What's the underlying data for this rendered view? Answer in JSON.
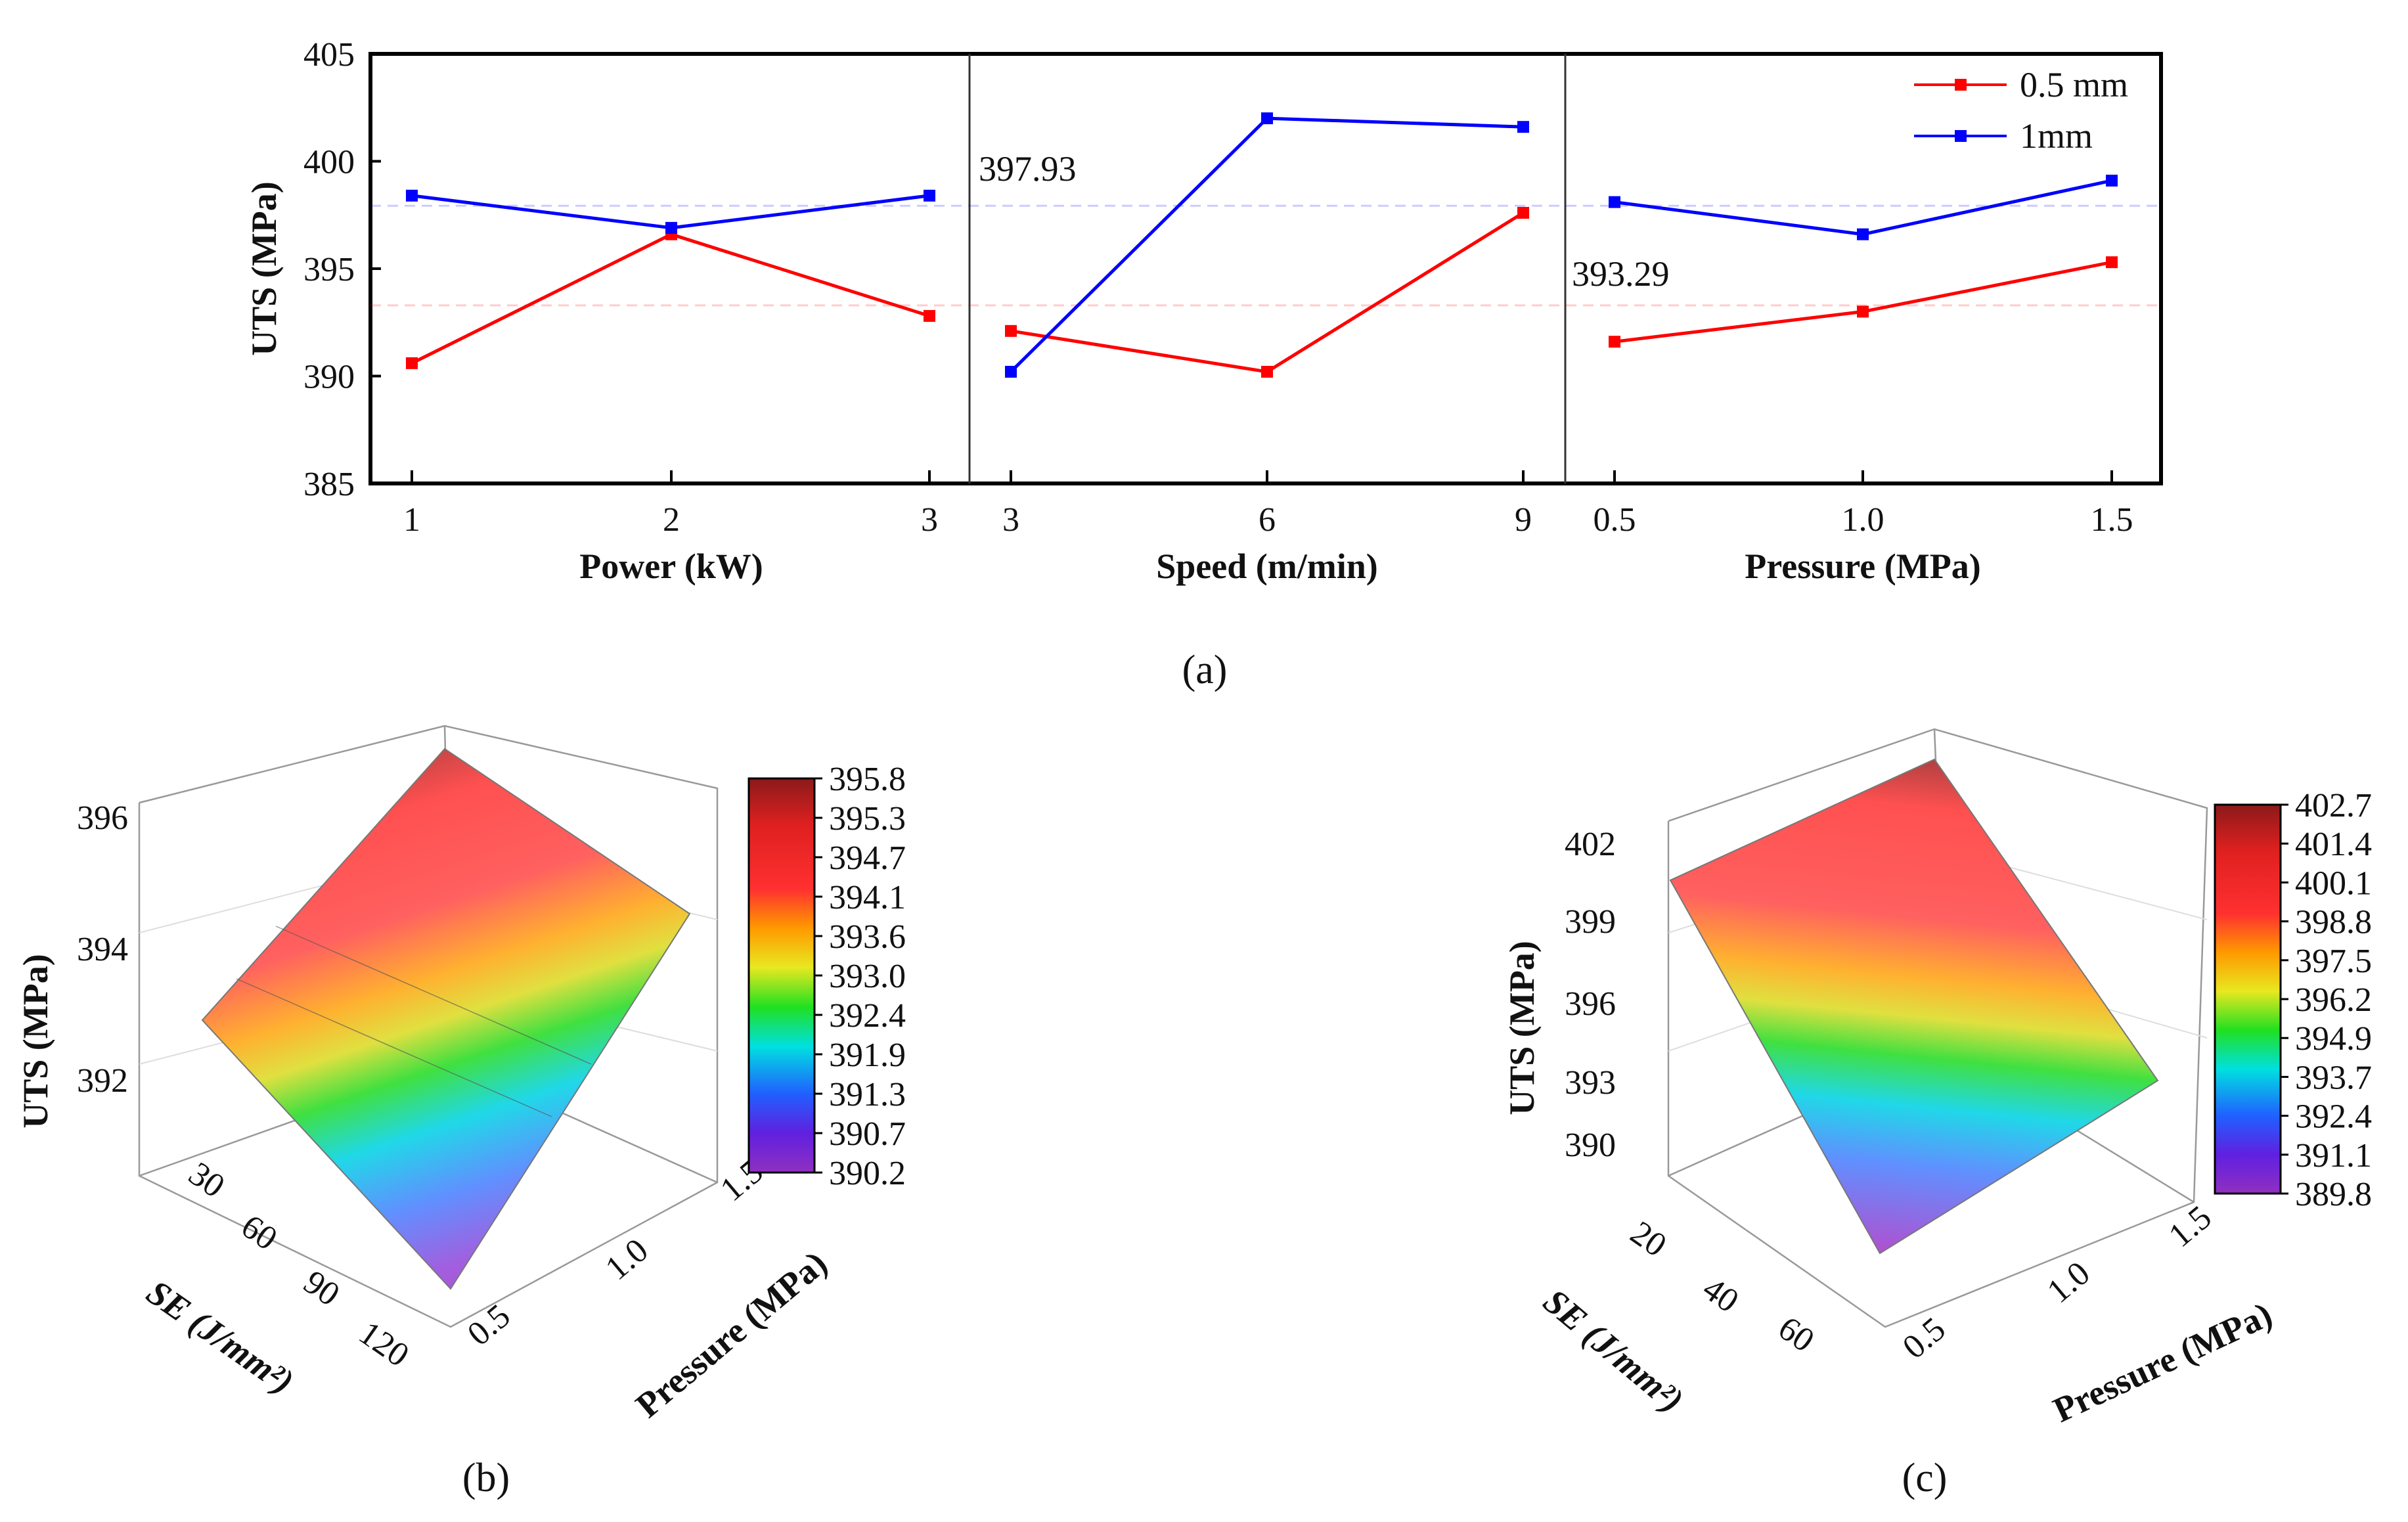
{
  "chart_data": [
    {
      "type": "line",
      "panel": "(a)",
      "ylabel": "UTS (MPa)",
      "ylim": [
        385,
        405
      ],
      "yticks": [
        "385",
        "390",
        "395",
        "400",
        "405"
      ],
      "groups": [
        {
          "xlabel": "Power (kW)",
          "x": [
            "1",
            "2",
            "3"
          ]
        },
        {
          "xlabel": "Speed (m/min)",
          "x": [
            "3",
            "6",
            "9"
          ]
        },
        {
          "xlabel": "Pressure (MPa)",
          "x": [
            "0.5",
            "1.0",
            "1.5"
          ]
        }
      ],
      "series": [
        {
          "name": "0.5 mm",
          "color": "#ff0000",
          "values": [
            [
              390.6,
              396.6,
              392.8
            ],
            [
              392.1,
              390.2,
              397.6
            ],
            [
              391.6,
              393.0,
              395.3
            ]
          ],
          "mean": 393.29,
          "mean_label": "393.29"
        },
        {
          "name": "1mm",
          "color": "#0000ff",
          "values": [
            [
              398.4,
              396.9,
              398.4
            ],
            [
              390.2,
              402.0,
              401.6
            ],
            [
              398.1,
              396.6,
              399.1
            ]
          ],
          "mean": 397.93,
          "mean_label": "397.93"
        }
      ],
      "legend": "top-right"
    },
    {
      "type": "surface",
      "panel": "(b)",
      "zlabel": "UTS (MPa)",
      "xlabel": "SE (J/mm²)",
      "ylabel": "Pressure (MPa)",
      "zticks": [
        "396",
        "394",
        "392"
      ],
      "xticks": [
        "30",
        "60",
        "90",
        "120"
      ],
      "yticks": [
        "0.5",
        "1.0",
        "1.5"
      ],
      "colorbar": [
        "395.8",
        "395.3",
        "394.7",
        "394.1",
        "393.6",
        "393.0",
        "392.4",
        "391.9",
        "391.3",
        "390.7",
        "390.2"
      ]
    },
    {
      "type": "surface",
      "panel": "(c)",
      "zlabel": "UTS (MPa)",
      "xlabel": "SE (J/mm²)",
      "ylabel": "Pressure (MPa)",
      "zticks": [
        "402",
        "399",
        "396",
        "393",
        "390"
      ],
      "xticks": [
        "20",
        "40",
        "60"
      ],
      "yticks": [
        "0.5",
        "1.0",
        "1.5"
      ],
      "colorbar": [
        "402.7",
        "401.4",
        "400.1",
        "398.8",
        "397.5",
        "396.2",
        "394.9",
        "393.7",
        "392.4",
        "391.1",
        "389.8"
      ]
    }
  ]
}
